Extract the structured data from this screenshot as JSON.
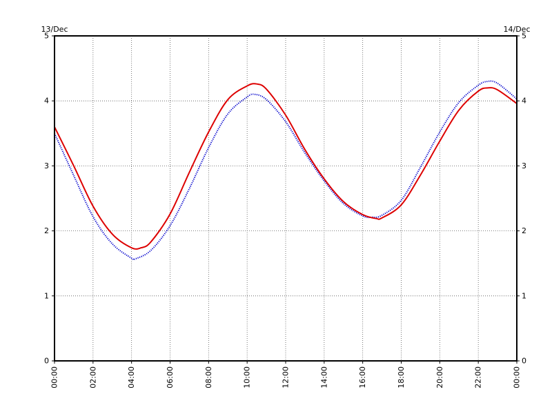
{
  "chart_data": {
    "type": "line",
    "title": "",
    "xlabel": "",
    "ylabel": "",
    "date_left": "13/Dec",
    "date_right": "14/Dec",
    "xlim": [
      0,
      24
    ],
    "ylim": [
      0,
      5
    ],
    "grid": true,
    "legend": "none",
    "x_ticks": [
      0,
      2,
      4,
      6,
      8,
      10,
      12,
      14,
      16,
      18,
      20,
      22,
      24
    ],
    "x_tick_labels": [
      "00:00",
      "02:00",
      "04:00",
      "06:00",
      "08:00",
      "10:00",
      "12:00",
      "14:00",
      "16:00",
      "18:00",
      "20:00",
      "22:00",
      "00:00"
    ],
    "y_ticks": [
      0,
      1,
      2,
      3,
      4,
      5
    ],
    "y_tick_labels": [
      "0",
      "1",
      "2",
      "3",
      "4",
      "5"
    ],
    "series": [
      {
        "color": "#0000cc",
        "style": "dotted",
        "x": [
          0,
          1,
          2,
          3,
          4,
          4.2,
          5,
          6,
          7,
          8,
          9,
          10,
          10.4,
          11,
          12,
          13,
          14,
          15,
          16,
          16.5,
          17,
          18,
          19,
          20,
          21,
          22,
          22.5,
          23,
          24
        ],
        "y": [
          3.5,
          2.85,
          2.22,
          1.8,
          1.58,
          1.57,
          1.7,
          2.08,
          2.65,
          3.28,
          3.8,
          4.06,
          4.1,
          4.02,
          3.68,
          3.2,
          2.77,
          2.42,
          2.23,
          2.21,
          2.24,
          2.47,
          2.98,
          3.52,
          3.98,
          4.24,
          4.3,
          4.27,
          4.03
        ]
      },
      {
        "color": "#dd0000",
        "style": "solid",
        "x": [
          0,
          1,
          2,
          3,
          4,
          4.5,
          5,
          6,
          7,
          8,
          9,
          10,
          10.5,
          11,
          12,
          13,
          14,
          15,
          16,
          16.7,
          17,
          18,
          19,
          20,
          21,
          22,
          22.5,
          23,
          24
        ],
        "y": [
          3.6,
          3.0,
          2.38,
          1.95,
          1.74,
          1.74,
          1.83,
          2.26,
          2.9,
          3.52,
          4.02,
          4.23,
          4.26,
          4.18,
          3.78,
          3.25,
          2.8,
          2.45,
          2.25,
          2.19,
          2.2,
          2.4,
          2.86,
          3.38,
          3.86,
          4.15,
          4.2,
          4.17,
          3.96
        ]
      }
    ]
  }
}
